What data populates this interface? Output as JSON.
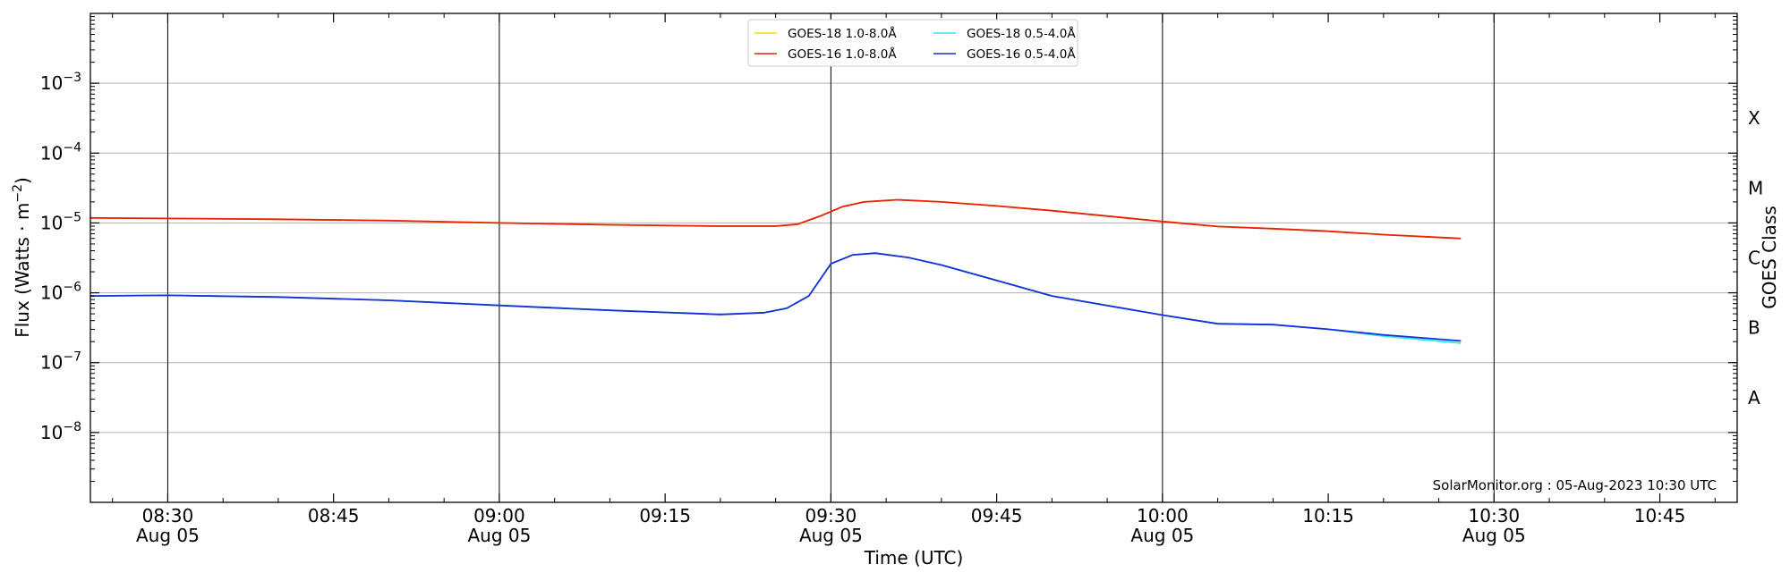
{
  "chart_data": {
    "type": "line",
    "xlabel": "Time (UTC)",
    "ylabel_base": "Flux (Watts · m",
    "ylabel_exp": "−2",
    "ylabel_close": ")",
    "right_axis_label": "GOES Class",
    "y_scale": "log",
    "ylim": [
      1e-09,
      0.01
    ],
    "xlim": [
      "08:23",
      "10:52"
    ],
    "y_ticks": [
      {
        "value": 1e-08,
        "base": "10",
        "exp": "−8"
      },
      {
        "value": 1e-07,
        "base": "10",
        "exp": "−7"
      },
      {
        "value": 1e-06,
        "base": "10",
        "exp": "−6"
      },
      {
        "value": 1e-05,
        "base": "10",
        "exp": "−5"
      },
      {
        "value": 0.0001,
        "base": "10",
        "exp": "−4"
      },
      {
        "value": 0.001,
        "base": "10",
        "exp": "−3"
      }
    ],
    "x_ticks": [
      {
        "time": "08:30",
        "label": "08:30",
        "sublabel": "Aug 05",
        "major": true
      },
      {
        "time": "08:45",
        "label": "08:45",
        "sublabel": "",
        "major": false
      },
      {
        "time": "09:00",
        "label": "09:00",
        "sublabel": "Aug 05",
        "major": true
      },
      {
        "time": "09:15",
        "label": "09:15",
        "sublabel": "",
        "major": false
      },
      {
        "time": "09:30",
        "label": "09:30",
        "sublabel": "Aug 05",
        "major": true
      },
      {
        "time": "09:45",
        "label": "09:45",
        "sublabel": "",
        "major": false
      },
      {
        "time": "10:00",
        "label": "10:00",
        "sublabel": "Aug 05",
        "major": true
      },
      {
        "time": "10:15",
        "label": "10:15",
        "sublabel": "",
        "major": false
      },
      {
        "time": "10:30",
        "label": "10:30",
        "sublabel": "Aug 05",
        "major": true
      },
      {
        "time": "10:45",
        "label": "10:45",
        "sublabel": "",
        "major": false
      }
    ],
    "goes_classes": [
      {
        "label": "A",
        "value": 3.16e-08
      },
      {
        "label": "B",
        "value": 3.16e-07
      },
      {
        "label": "C",
        "value": 3.16e-06
      },
      {
        "label": "M",
        "value": 3.16e-05
      },
      {
        "label": "X",
        "value": 0.000316
      }
    ],
    "legend": {
      "placement": "top-center",
      "items": [
        {
          "label": "GOES-18 1.0-8.0Å",
          "color": "#ffd700"
        },
        {
          "label": "GOES-16 1.0-8.0Å",
          "color": "#e8200c"
        },
        {
          "label": "GOES-18 0.5-4.0Å",
          "color": "#2ee6f2"
        },
        {
          "label": "GOES-16 0.5-4.0Å",
          "color": "#1a2fd6"
        }
      ]
    },
    "series": [
      {
        "name": "GOES-18 1.0-8.0Å",
        "color": "#ffd700",
        "x": [
          "08:23",
          "08:30",
          "08:40",
          "08:50",
          "09:00",
          "09:10",
          "09:20",
          "09:25",
          "09:27",
          "09:29",
          "09:31",
          "09:33",
          "09:36",
          "09:40",
          "09:45",
          "09:50",
          "10:00",
          "10:05",
          "10:10",
          "10:15",
          "10:20",
          "10:27"
        ],
        "y": [
          1.18e-05,
          1.16e-05,
          1.13e-05,
          1.08e-05,
          1e-05,
          9.4e-06,
          9e-06,
          9e-06,
          9.6e-06,
          1.25e-05,
          1.7e-05,
          2e-05,
          2.15e-05,
          2e-05,
          1.75e-05,
          1.5e-05,
          1.05e-05,
          8.9e-06,
          8.3e-06,
          7.6e-06,
          6.8e-06,
          6e-06
        ]
      },
      {
        "name": "GOES-16 1.0-8.0Å",
        "color": "#e8200c",
        "x": [
          "08:23",
          "08:30",
          "08:40",
          "08:50",
          "09:00",
          "09:10",
          "09:20",
          "09:25",
          "09:27",
          "09:29",
          "09:31",
          "09:33",
          "09:36",
          "09:40",
          "09:45",
          "09:50",
          "10:00",
          "10:05",
          "10:10",
          "10:15",
          "10:20",
          "10:27"
        ],
        "y": [
          1.18e-05,
          1.16e-05,
          1.13e-05,
          1.08e-05,
          1e-05,
          9.4e-06,
          9e-06,
          9e-06,
          9.6e-06,
          1.25e-05,
          1.7e-05,
          2e-05,
          2.15e-05,
          2e-05,
          1.75e-05,
          1.5e-05,
          1.05e-05,
          8.9e-06,
          8.3e-06,
          7.6e-06,
          6.8e-06,
          6e-06
        ]
      },
      {
        "name": "GOES-18 0.5-4.0Å",
        "color": "#2ee6f2",
        "x": [
          "08:23",
          "08:30",
          "08:40",
          "08:50",
          "09:00",
          "09:10",
          "09:20",
          "09:24",
          "09:26",
          "09:28",
          "09:30",
          "09:32",
          "09:34",
          "09:37",
          "09:40",
          "09:45",
          "09:50",
          "10:00",
          "10:05",
          "10:10",
          "10:15",
          "10:20",
          "10:27"
        ],
        "y": [
          9e-07,
          9.2e-07,
          8.7e-07,
          7.8e-07,
          6.6e-07,
          5.6e-07,
          4.9e-07,
          5.2e-07,
          6e-07,
          9e-07,
          2.6e-06,
          3.5e-06,
          3.7e-06,
          3.2e-06,
          2.5e-06,
          1.5e-06,
          9e-07,
          4.8e-07,
          3.6e-07,
          3.5e-07,
          3e-07,
          2.4e-07,
          1.9e-07
        ]
      },
      {
        "name": "GOES-16 0.5-4.0Å",
        "color": "#1a2fd6",
        "x": [
          "08:23",
          "08:30",
          "08:40",
          "08:50",
          "09:00",
          "09:10",
          "09:20",
          "09:24",
          "09:26",
          "09:28",
          "09:30",
          "09:32",
          "09:34",
          "09:37",
          "09:40",
          "09:45",
          "09:50",
          "10:00",
          "10:05",
          "10:10",
          "10:15",
          "10:20",
          "10:27"
        ],
        "y": [
          9e-07,
          9.2e-07,
          8.7e-07,
          7.8e-07,
          6.6e-07,
          5.6e-07,
          4.9e-07,
          5.2e-07,
          6e-07,
          9e-07,
          2.6e-06,
          3.5e-06,
          3.7e-06,
          3.2e-06,
          2.5e-06,
          1.5e-06,
          9e-07,
          4.8e-07,
          3.6e-07,
          3.5e-07,
          3e-07,
          2.5e-07,
          2.05e-07
        ]
      }
    ],
    "grid": {
      "horizontal": true,
      "major_vertical": true
    },
    "annotation": "SolarMonitor.org : 05-Aug-2023 10:30 UTC"
  }
}
